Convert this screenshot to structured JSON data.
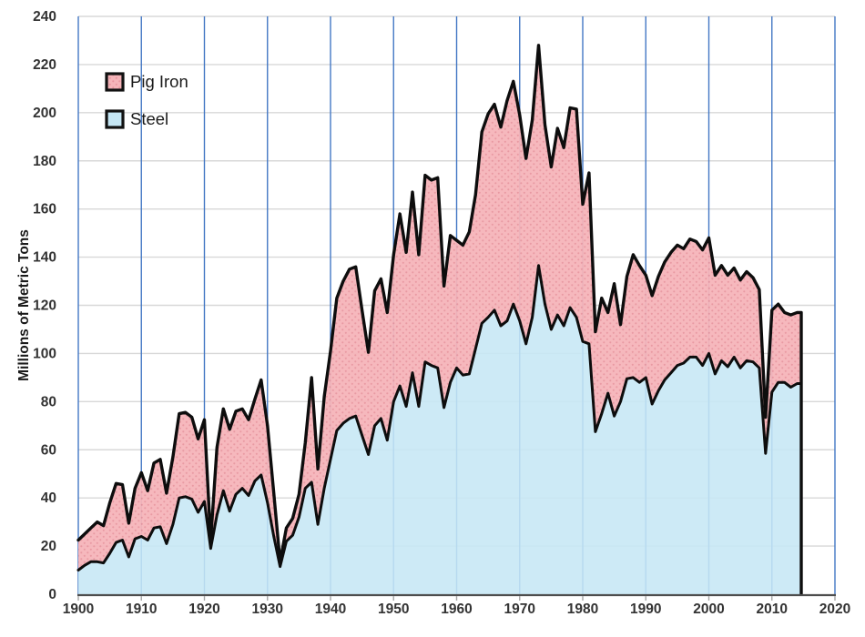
{
  "chart": {
    "kind": "stacked-area-chart",
    "ylabel": "Millions of Metric Tons",
    "legend": {
      "position": "top-left",
      "items": [
        {
          "label": "Pig Iron",
          "fill": "#f5b3b8",
          "dot_color": "#e8959e",
          "pattern": "dots",
          "border": "#111111"
        },
        {
          "label": "Steel",
          "fill": "#c5e6f4",
          "dot_color": "",
          "pattern": "solid",
          "border": "#111111"
        }
      ]
    },
    "colors": {
      "steel_fill": "#c6e7f5",
      "pig_fill": "#f5b4b9",
      "pig_dot": "#e8959e",
      "line": "#0d0d0d",
      "vgrid_blue": "#4377c4",
      "hgrid_gray": "#d8d8d8",
      "axis_dark": "#4d4d4d",
      "tick_text": "#333333",
      "title_text": "#1a1a1a"
    }
  },
  "chart_data": {
    "type": "area",
    "stacked": true,
    "title": "",
    "xlabel": "",
    "ylabel": "Millions of Metric Tons",
    "xlim": [
      1900,
      2020
    ],
    "ylim": [
      0,
      240
    ],
    "x_ticks": [
      1900,
      1910,
      1920,
      1930,
      1940,
      1950,
      1960,
      1970,
      1980,
      1990,
      2000,
      2010,
      2020
    ],
    "y_ticks": [
      0,
      20,
      40,
      60,
      80,
      100,
      120,
      140,
      160,
      180,
      200,
      220,
      240
    ],
    "grid": true,
    "legend_position": "top-left",
    "years": [
      1900,
      1901,
      1902,
      1903,
      1904,
      1905,
      1906,
      1907,
      1908,
      1909,
      1910,
      1911,
      1912,
      1913,
      1914,
      1915,
      1916,
      1917,
      1918,
      1919,
      1920,
      1921,
      1922,
      1923,
      1924,
      1925,
      1926,
      1927,
      1928,
      1929,
      1930,
      1931,
      1932,
      1933,
      1934,
      1935,
      1936,
      1937,
      1938,
      1939,
      1940,
      1941,
      1942,
      1943,
      1944,
      1945,
      1946,
      1947,
      1948,
      1949,
      1950,
      1951,
      1952,
      1953,
      1954,
      1955,
      1956,
      1957,
      1958,
      1959,
      1960,
      1961,
      1962,
      1963,
      1964,
      1965,
      1966,
      1967,
      1968,
      1969,
      1970,
      1971,
      1972,
      1973,
      1974,
      1975,
      1976,
      1977,
      1978,
      1979,
      1980,
      1981,
      1982,
      1983,
      1984,
      1985,
      1986,
      1987,
      1988,
      1989,
      1990,
      1991,
      1992,
      1993,
      1994,
      1995,
      1996,
      1997,
      1998,
      1999,
      2000,
      2001,
      2002,
      2003,
      2004,
      2005,
      2006,
      2007,
      2008,
      2009,
      2010,
      2011,
      2012,
      2013,
      2014
    ],
    "series": [
      {
        "name": "Steel",
        "values": [
          10,
          12,
          13.5,
          13.5,
          13,
          17,
          21.5,
          22.5,
          15.5,
          23,
          24,
          22.5,
          27.5,
          28,
          21,
          29,
          40,
          40.5,
          39.5,
          34,
          38.5,
          19,
          33,
          43,
          34.5,
          41.5,
          44,
          41,
          47,
          49.5,
          38,
          24,
          11.5,
          22,
          24.5,
          32,
          44,
          46.5,
          29,
          44,
          56,
          68,
          71,
          73,
          74,
          66,
          58,
          70,
          73,
          64,
          80,
          86.5,
          78,
          92,
          78,
          96.5,
          95,
          94,
          77.5,
          88,
          94,
          91,
          91.5,
          102,
          112.5,
          115,
          118,
          111.5,
          113.5,
          120.5,
          113.5,
          104,
          115,
          136.5,
          120.5,
          110,
          116,
          111.5,
          119,
          115,
          105,
          104,
          67.5,
          75,
          83.5,
          74,
          80,
          89.5,
          90,
          88,
          90,
          79,
          84.5,
          89,
          92,
          95,
          96,
          98.5,
          98.5,
          95,
          100,
          91.5,
          97,
          94.5,
          98.5,
          94,
          97,
          96.5,
          94,
          58.5,
          84,
          88,
          88,
          86,
          87.5
        ]
      },
      {
        "name": "Pig Iron",
        "values": [
          12.5,
          13,
          14,
          16.5,
          15.5,
          21,
          24.5,
          23,
          14,
          21,
          26.5,
          20.5,
          27,
          28,
          21,
          28,
          35,
          35,
          34,
          30.5,
          34,
          3.5,
          28,
          34,
          34,
          34.5,
          33,
          31.5,
          34,
          39.5,
          32,
          18,
          2,
          5.5,
          7,
          9.5,
          19,
          43.5,
          23,
          38,
          45,
          55,
          59,
          62,
          62,
          52,
          42.5,
          56,
          58,
          53,
          61,
          71.5,
          64,
          75,
          63,
          77.5,
          77,
          79,
          50.5,
          61,
          53,
          54,
          59,
          64,
          79.5,
          84.5,
          85.5,
          82.5,
          91.5,
          92.5,
          85.5,
          77,
          82,
          91.5,
          74.5,
          67.5,
          77.5,
          74,
          83,
          86.5,
          57,
          71,
          41.5,
          48,
          33.5,
          55,
          32,
          42.5,
          51,
          48.5,
          42.5,
          45,
          47.5,
          49,
          50,
          50,
          47.5,
          49,
          48,
          48,
          48,
          41,
          39.5,
          38,
          37,
          36.5,
          37,
          35,
          32.5,
          15,
          34,
          32.5,
          29,
          30,
          29.5
        ]
      }
    ],
    "series_end_x": 2014.66
  }
}
